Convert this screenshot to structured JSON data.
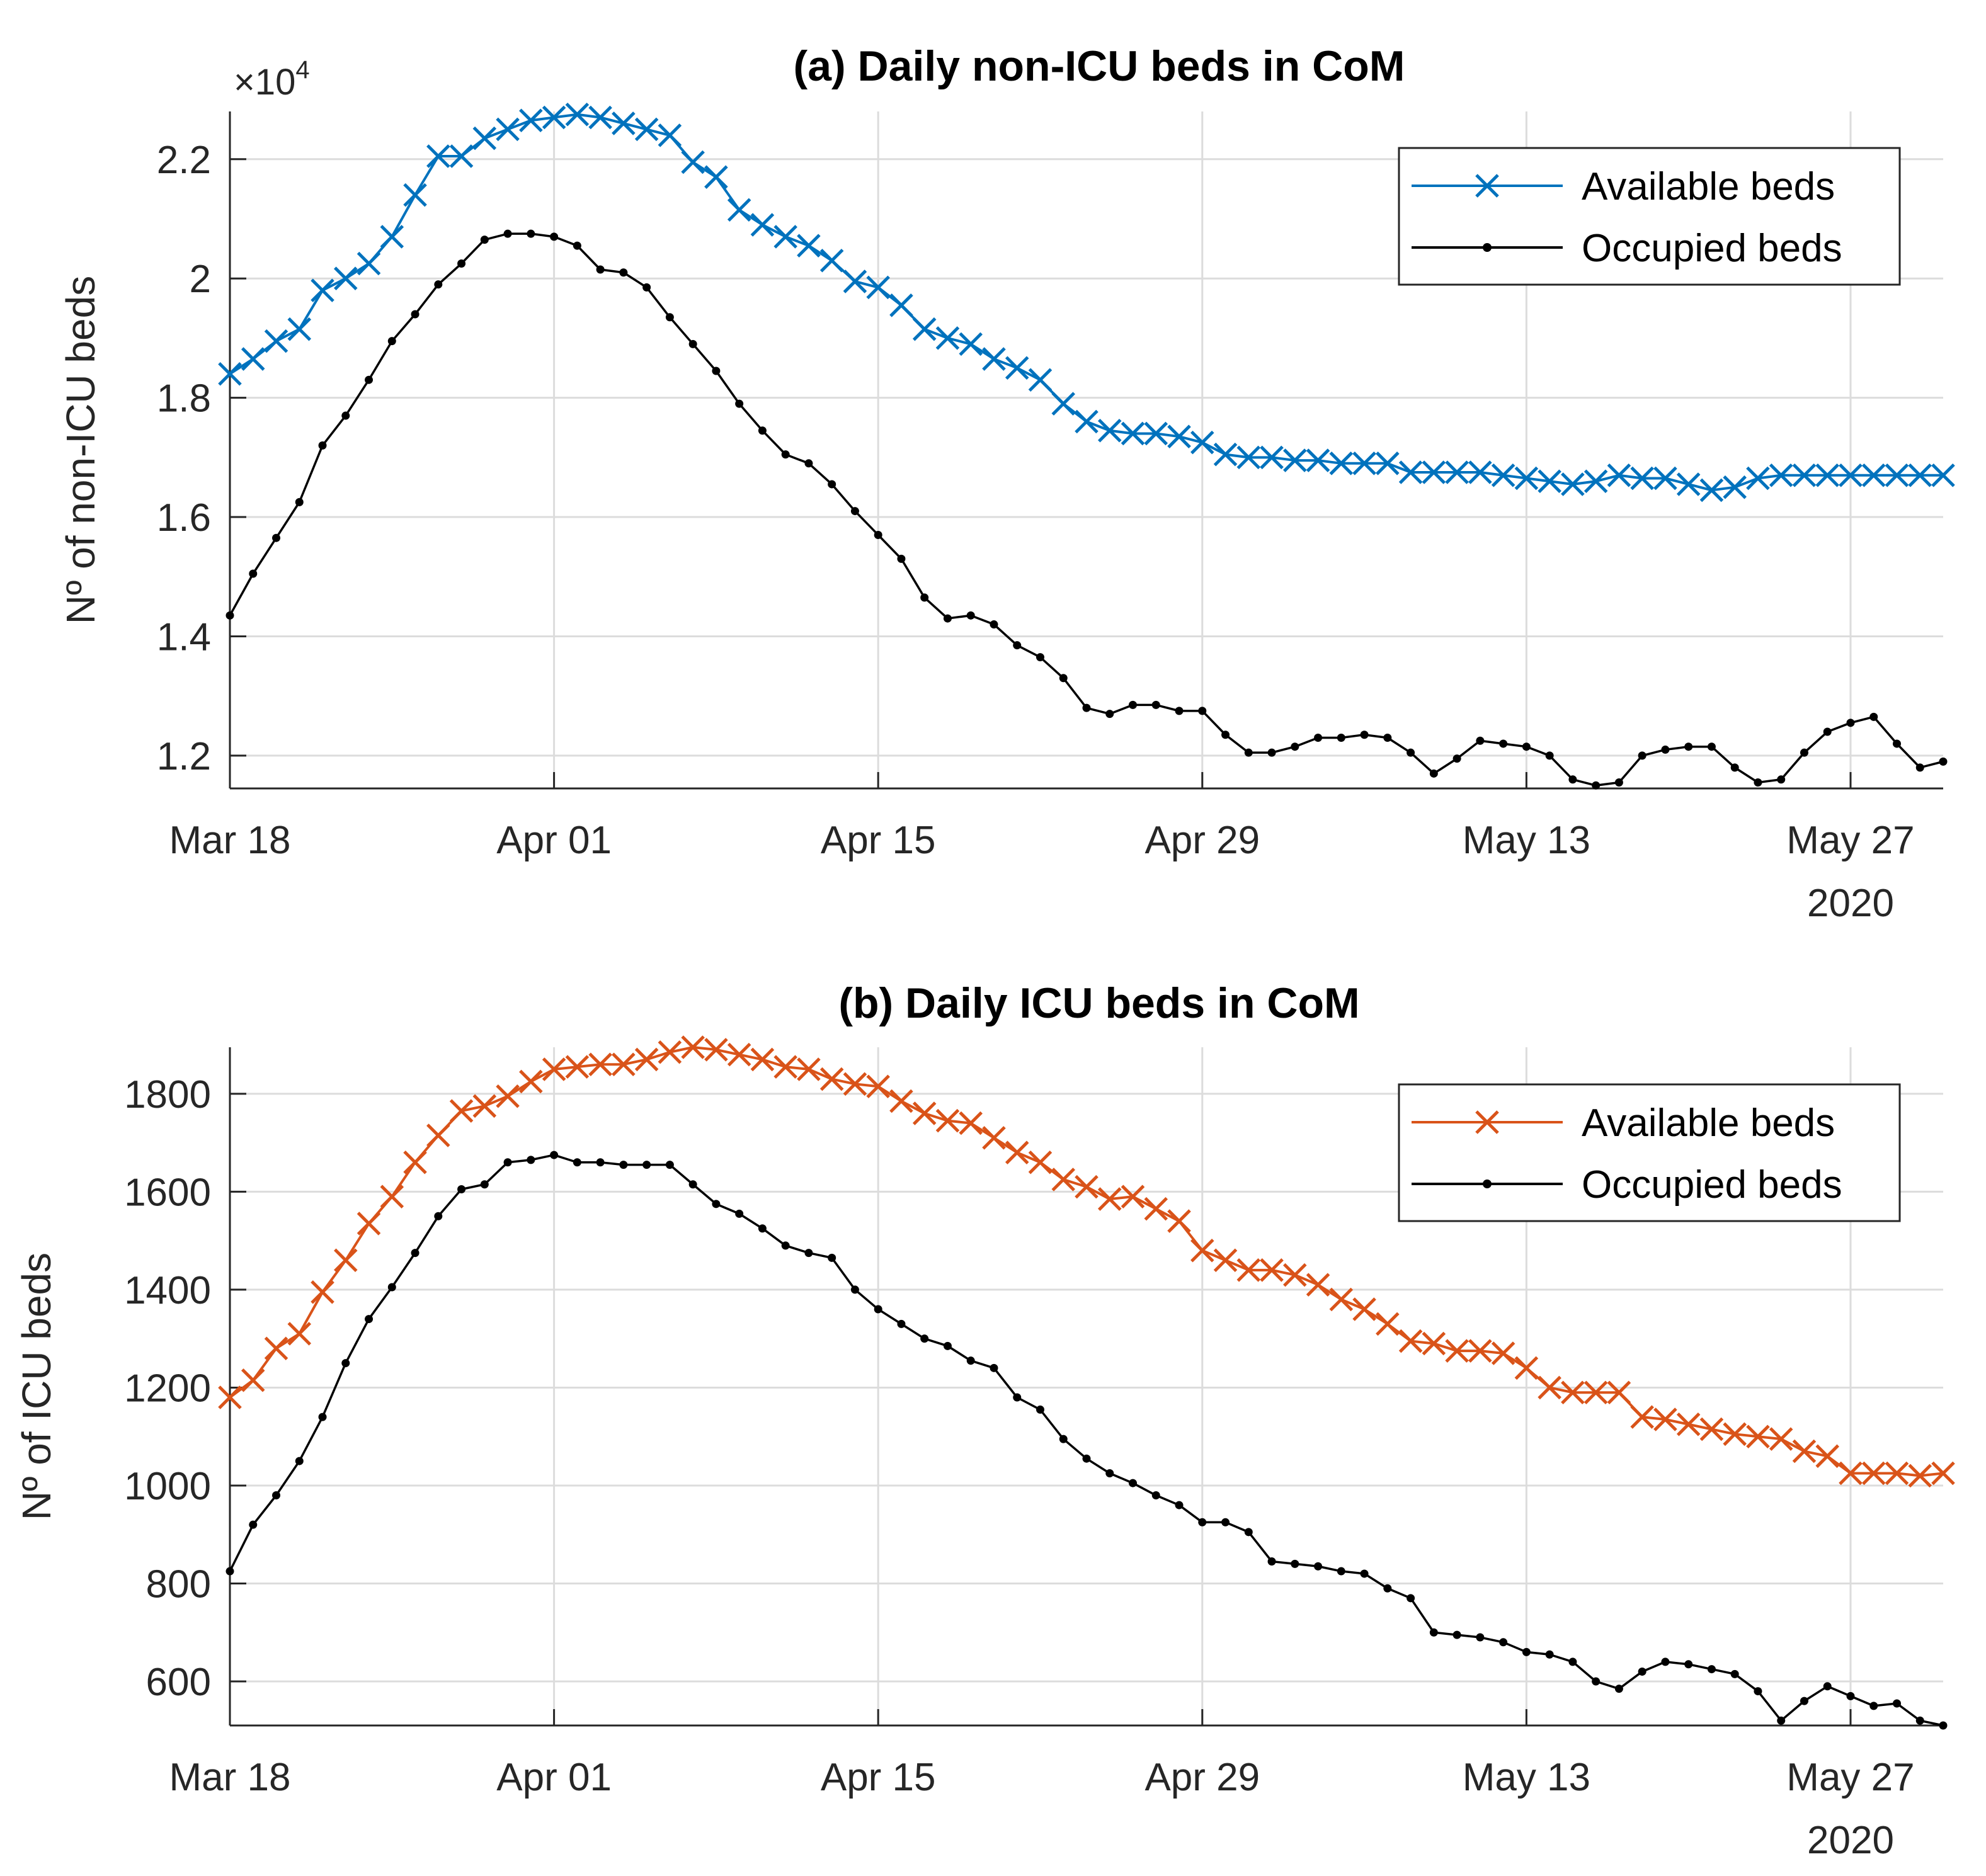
{
  "chart_data": [
    {
      "type": "line",
      "title": "(a) Daily non-ICU beds in CoM",
      "ylabel": "Nº of non-ICU beds",
      "xlabel": "",
      "x_start": "Mar 18",
      "x_count": 75,
      "x_ticks": [
        {
          "label": "Mar 18",
          "index": 0
        },
        {
          "label": "Apr 01",
          "index": 14
        },
        {
          "label": "Apr 15",
          "index": 28
        },
        {
          "label": "Apr 29",
          "index": 42
        },
        {
          "label": "May 13",
          "index": 56
        },
        {
          "label": "May 27",
          "index": 70
        }
      ],
      "x_year_label": "2020",
      "ylim": [
        11450,
        22800
      ],
      "y_ticks": [
        {
          "label": "1.2",
          "value": 12000
        },
        {
          "label": "1.4",
          "value": 14000
        },
        {
          "label": "1.6",
          "value": 16000
        },
        {
          "label": "1.8",
          "value": 18000
        },
        {
          "label": "2",
          "value": 20000
        },
        {
          "label": "2.2",
          "value": 22000
        }
      ],
      "y_exponent": {
        "base": "×10",
        "power": "4"
      },
      "grid": true,
      "legend_position": "top-right",
      "series": [
        {
          "name": "Available beds",
          "color": "#0072BD",
          "marker": "x",
          "values": [
            18400,
            18650,
            18950,
            19150,
            19800,
            20000,
            20250,
            20700,
            21400,
            22050,
            22050,
            22350,
            22500,
            22650,
            22700,
            22750,
            22700,
            22600,
            22500,
            22400,
            21950,
            21700,
            21150,
            20900,
            20700,
            20550,
            20300,
            19950,
            19850,
            19550,
            19150,
            19000,
            18900,
            18650,
            18500,
            18300,
            17900,
            17600,
            17450,
            17400,
            17400,
            17350,
            17250,
            17050,
            17000,
            17000,
            16950,
            16950,
            16900,
            16900,
            16900,
            16750,
            16750,
            16750,
            16750,
            16700,
            16650,
            16600,
            16550,
            16600,
            16700,
            16650,
            16650,
            16550,
            16450,
            16500,
            16650,
            16700,
            16700,
            16700,
            16700,
            16700,
            16700,
            16700,
            16700
          ]
        },
        {
          "name": "Occupied beds",
          "color": "#000000",
          "marker": ".",
          "values": [
            14350,
            15050,
            15650,
            16250,
            17200,
            17700,
            18300,
            18950,
            19400,
            19900,
            20250,
            20650,
            20750,
            20750,
            20700,
            20550,
            20150,
            20100,
            19850,
            19350,
            18900,
            18450,
            17900,
            17450,
            17050,
            16900,
            16550,
            16100,
            15700,
            15300,
            14650,
            14300,
            14350,
            14200,
            13850,
            13650,
            13300,
            12800,
            12700,
            12850,
            12850,
            12750,
            12750,
            12350,
            12050,
            12050,
            12150,
            12300,
            12300,
            12350,
            12300,
            12050,
            11700,
            11950,
            12250,
            12200,
            12150,
            12000,
            11600,
            11500,
            11550,
            12000,
            12100,
            12150,
            12150,
            11800,
            11550,
            11600,
            12050,
            12400,
            12550,
            12650,
            12200,
            11800,
            11900
          ]
        }
      ]
    },
    {
      "type": "line",
      "title": "(b) Daily ICU beds in CoM",
      "ylabel": "Nº of ICU beds",
      "xlabel": "",
      "x_start": "Mar 18",
      "x_count": 75,
      "x_ticks": [
        {
          "label": "Mar 18",
          "index": 0
        },
        {
          "label": "Apr 01",
          "index": 14
        },
        {
          "label": "Apr 15",
          "index": 28
        },
        {
          "label": "Apr 29",
          "index": 42
        },
        {
          "label": "May 13",
          "index": 56
        },
        {
          "label": "May 27",
          "index": 70
        }
      ],
      "x_year_label": "2020",
      "ylim": [
        510,
        1895
      ],
      "y_ticks": [
        {
          "label": "600",
          "value": 600
        },
        {
          "label": "800",
          "value": 800
        },
        {
          "label": "1000",
          "value": 1000
        },
        {
          "label": "1200",
          "value": 1200
        },
        {
          "label": "1400",
          "value": 1400
        },
        {
          "label": "1600",
          "value": 1600
        },
        {
          "label": "1800",
          "value": 1800
        }
      ],
      "grid": true,
      "legend_position": "top-right",
      "series": [
        {
          "name": "Available beds",
          "color": "#D95319",
          "marker": "x",
          "values": [
            1180,
            1215,
            1280,
            1310,
            1395,
            1460,
            1535,
            1590,
            1660,
            1715,
            1765,
            1775,
            1795,
            1825,
            1850,
            1855,
            1860,
            1860,
            1870,
            1885,
            1895,
            1890,
            1880,
            1870,
            1855,
            1850,
            1830,
            1820,
            1815,
            1785,
            1760,
            1745,
            1740,
            1710,
            1680,
            1660,
            1625,
            1610,
            1585,
            1590,
            1565,
            1540,
            1480,
            1460,
            1440,
            1440,
            1430,
            1410,
            1380,
            1360,
            1330,
            1295,
            1290,
            1275,
            1275,
            1270,
            1240,
            1200,
            1190,
            1190,
            1190,
            1140,
            1135,
            1125,
            1115,
            1105,
            1100,
            1095,
            1070,
            1060,
            1025,
            1025,
            1025,
            1020,
            1025
          ]
        },
        {
          "name": "Occupied beds",
          "color": "#000000",
          "marker": ".",
          "values": [
            825,
            920,
            980,
            1050,
            1140,
            1250,
            1340,
            1405,
            1475,
            1550,
            1605,
            1615,
            1660,
            1665,
            1675,
            1660,
            1660,
            1655,
            1655,
            1655,
            1615,
            1575,
            1555,
            1525,
            1490,
            1475,
            1465,
            1400,
            1360,
            1330,
            1300,
            1285,
            1255,
            1240,
            1180,
            1155,
            1095,
            1055,
            1025,
            1005,
            980,
            960,
            925,
            925,
            905,
            845,
            840,
            835,
            825,
            820,
            790,
            770,
            700,
            695,
            690,
            680,
            660,
            655,
            640,
            600,
            585,
            620,
            640,
            635,
            625,
            615,
            580,
            520,
            560,
            590,
            570,
            550,
            555,
            520,
            510
          ]
        }
      ]
    }
  ]
}
